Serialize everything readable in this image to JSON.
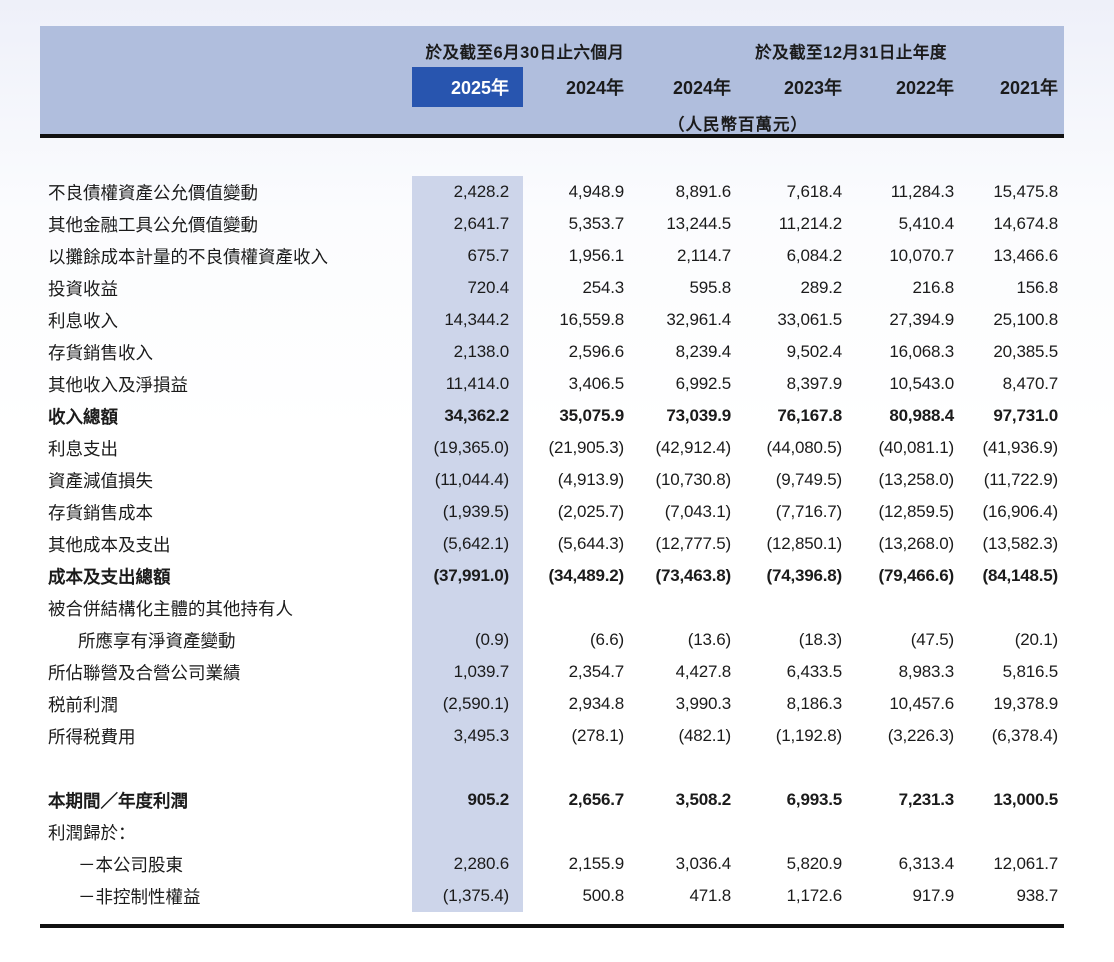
{
  "colors": {
    "header_bg": "#b0bedd",
    "highlight_column_bg": "#cdd5ea",
    "active_year_bg": "#2855af",
    "active_year_text": "#ffffff",
    "rule": "#111111"
  },
  "table": {
    "span_headers": [
      {
        "label": "於及截至6月30日止六個月",
        "columns": [
          "2025年",
          "2024年"
        ]
      },
      {
        "label": "於及截至12月31日止年度",
        "columns": [
          "2024年",
          "2023年",
          "2022年",
          "2021年"
        ]
      }
    ],
    "year_headers": [
      "2025年",
      "2024年",
      "2024年",
      "2023年",
      "2022年",
      "2021年"
    ],
    "highlighted_year": "2025年",
    "unit_note": "（人民幣百萬元）",
    "rows": [
      {
        "label": "不良債權資產公允價值變動",
        "values": [
          "2,428.2",
          "4,948.9",
          "8,891.6",
          "7,618.4",
          "11,284.3",
          "15,475.8"
        ]
      },
      {
        "label": "其他金融工具公允價值變動",
        "values": [
          "2,641.7",
          "5,353.7",
          "13,244.5",
          "11,214.2",
          "5,410.4",
          "14,674.8"
        ]
      },
      {
        "label": "以攤餘成本計量的不良債權資產收入",
        "values": [
          "675.7",
          "1,956.1",
          "2,114.7",
          "6,084.2",
          "10,070.7",
          "13,466.6"
        ]
      },
      {
        "label": "投資收益",
        "values": [
          "720.4",
          "254.3",
          "595.8",
          "289.2",
          "216.8",
          "156.8"
        ]
      },
      {
        "label": "利息收入",
        "values": [
          "14,344.2",
          "16,559.8",
          "32,961.4",
          "33,061.5",
          "27,394.9",
          "25,100.8"
        ]
      },
      {
        "label": "存貨銷售收入",
        "values": [
          "2,138.0",
          "2,596.6",
          "8,239.4",
          "9,502.4",
          "16,068.3",
          "20,385.5"
        ]
      },
      {
        "label": "其他收入及淨損益",
        "values": [
          "11,414.0",
          "3,406.5",
          "6,992.5",
          "8,397.9",
          "10,543.0",
          "8,470.7"
        ]
      },
      {
        "label": "收入總額",
        "bold": true,
        "values": [
          "34,362.2",
          "35,075.9",
          "73,039.9",
          "76,167.8",
          "80,988.4",
          "97,731.0"
        ]
      },
      {
        "label": "利息支出",
        "values": [
          "(19,365.0)",
          "(21,905.3)",
          "(42,912.4)",
          "(44,080.5)",
          "(40,081.1)",
          "(41,936.9)"
        ]
      },
      {
        "label": "資產減值損失",
        "values": [
          "(11,044.4)",
          "(4,913.9)",
          "(10,730.8)",
          "(9,749.5)",
          "(13,258.0)",
          "(11,722.9)"
        ]
      },
      {
        "label": "存貨銷售成本",
        "values": [
          "(1,939.5)",
          "(2,025.7)",
          "(7,043.1)",
          "(7,716.7)",
          "(12,859.5)",
          "(16,906.4)"
        ]
      },
      {
        "label": "其他成本及支出",
        "values": [
          "(5,642.1)",
          "(5,644.3)",
          "(12,777.5)",
          "(12,850.1)",
          "(13,268.0)",
          "(13,582.3)"
        ]
      },
      {
        "label": "成本及支出總額",
        "bold": true,
        "values": [
          "(37,991.0)",
          "(34,489.2)",
          "(73,463.8)",
          "(74,396.8)",
          "(79,466.6)",
          "(84,148.5)"
        ]
      },
      {
        "label": "被合併結構化主體的其他持有人",
        "values": [
          "",
          "",
          "",
          "",
          "",
          ""
        ]
      },
      {
        "label": "所應享有淨資產變動",
        "indent": true,
        "values": [
          "(0.9)",
          "(6.6)",
          "(13.6)",
          "(18.3)",
          "(47.5)",
          "(20.1)"
        ]
      },
      {
        "label": "所佔聯營及合營公司業績",
        "values": [
          "1,039.7",
          "2,354.7",
          "4,427.8",
          "6,433.5",
          "8,983.3",
          "5,816.5"
        ]
      },
      {
        "label": "税前利潤",
        "values": [
          "(2,590.1)",
          "2,934.8",
          "3,990.3",
          "8,186.3",
          "10,457.6",
          "19,378.9"
        ]
      },
      {
        "label": "所得税費用",
        "values": [
          "3,495.3",
          "(278.1)",
          "(482.1)",
          "(1,192.8)",
          "(3,226.3)",
          "(6,378.4)"
        ]
      },
      {
        "blank": true
      },
      {
        "label": "本期間／年度利潤",
        "bold": true,
        "values": [
          "905.2",
          "2,656.7",
          "3,508.2",
          "6,993.5",
          "7,231.3",
          "13,000.5"
        ]
      },
      {
        "label": "利潤歸於：",
        "values": [
          "",
          "",
          "",
          "",
          "",
          ""
        ]
      },
      {
        "label": "－本公司股東",
        "indent": true,
        "values": [
          "2,280.6",
          "2,155.9",
          "3,036.4",
          "5,820.9",
          "6,313.4",
          "12,061.7"
        ]
      },
      {
        "label": "－非控制性權益",
        "indent": true,
        "values": [
          "(1,375.4)",
          "500.8",
          "471.8",
          "1,172.6",
          "917.9",
          "938.7"
        ]
      }
    ]
  }
}
